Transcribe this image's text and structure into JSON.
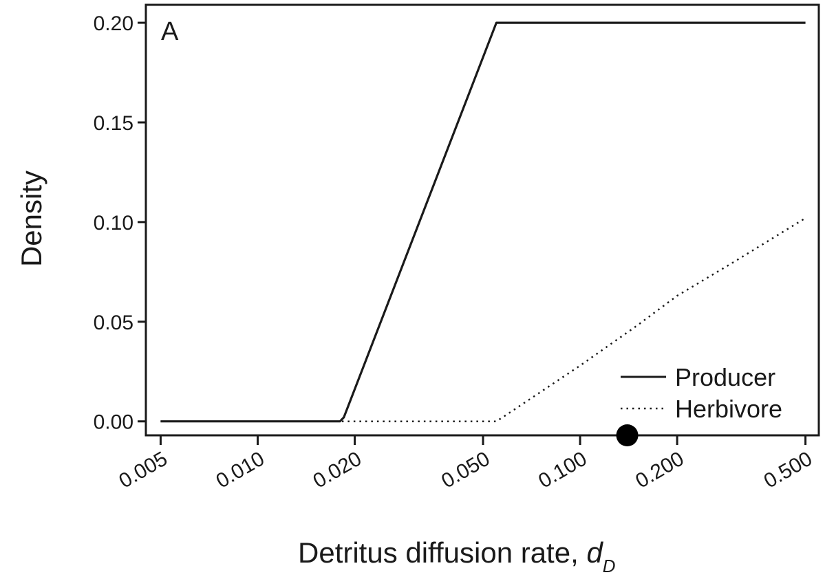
{
  "chart_data": {
    "type": "line",
    "panel_label": "A",
    "xlabel": "Detritus diffusion rate, ",
    "xlabel_var": "d",
    "xlabel_sub": "D",
    "ylabel": "Density",
    "x_scale": "log",
    "xlim": [
      0.0045,
      0.55
    ],
    "ylim": [
      -0.007,
      0.209
    ],
    "x_ticks": [
      0.005,
      0.01,
      0.02,
      0.05,
      0.1,
      0.2,
      0.5
    ],
    "x_tick_labels": [
      "0.005",
      "0.010",
      "0.020",
      "0.050",
      "0.100",
      "0.200",
      "0.500"
    ],
    "y_ticks": [
      0.0,
      0.05,
      0.1,
      0.15,
      0.2
    ],
    "y_tick_labels": [
      "0.00",
      "0.05",
      "0.10",
      "0.15",
      "0.20"
    ],
    "legend_position": "bottom-right",
    "series": [
      {
        "name": "Producer",
        "style": "solid",
        "x": [
          0.005,
          0.018,
          0.0185,
          0.055,
          0.5
        ],
        "y": [
          0.0,
          0.0,
          0.002,
          0.2,
          0.2
        ]
      },
      {
        "name": "Herbivore",
        "style": "dotted",
        "x": [
          0.005,
          0.055,
          0.06,
          0.1,
          0.15,
          0.2,
          0.3,
          0.5
        ],
        "y": [
          0.0,
          0.0,
          0.004,
          0.028,
          0.048,
          0.063,
          0.08,
          0.102
        ]
      }
    ],
    "marker": {
      "x": 0.14,
      "y": -0.007
    }
  }
}
